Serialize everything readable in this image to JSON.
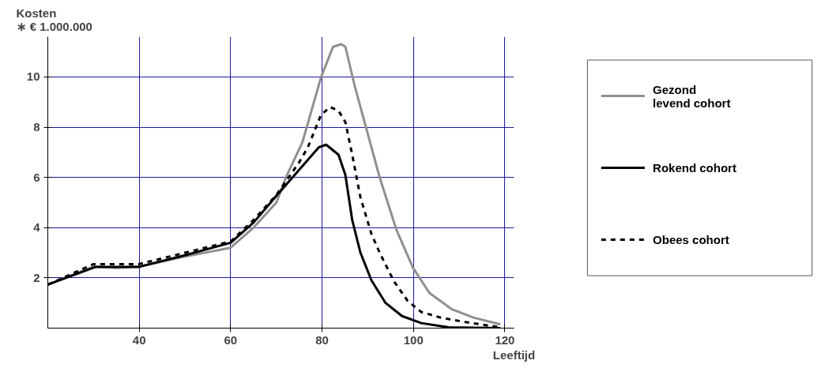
{
  "chart_data": {
    "type": "line",
    "ylabel": "Kosten\n∗ € 1.000.000",
    "xlabel": "Leeftijd",
    "xlim": [
      20,
      122
    ],
    "ylim": [
      0,
      11.6
    ],
    "xticks": [
      40,
      60,
      80,
      100,
      120
    ],
    "yticks": [
      2,
      4,
      6,
      8,
      10
    ],
    "grid": true,
    "legend": "right",
    "series": [
      {
        "name": "Gezond levend cohort",
        "color": "#909090",
        "line_style": "solid",
        "x": [
          20,
          30,
          35,
          40,
          50,
          60,
          62.5,
          65,
          70,
          72.1,
          75.7,
          79.8,
          82.4,
          84.2,
          85.1,
          87.2,
          89.6,
          92.6,
          96.3,
          99.9,
          103.5,
          108.3,
          113.1,
          119
        ],
        "values": [
          1.73,
          2.45,
          2.4,
          2.45,
          2.85,
          3.2,
          3.6,
          4.0,
          5.0,
          6.0,
          7.4,
          10.0,
          11.2,
          11.3,
          11.2,
          9.6,
          8.0,
          6.0,
          3.9,
          2.4,
          1.4,
          0.76,
          0.42,
          0.15
        ]
      },
      {
        "name": "Rokend cohort",
        "color": "#000000",
        "line_style": "solid",
        "x": [
          20,
          30.5,
          40,
          50,
          60,
          65,
          69.7,
          74.5,
          79.3,
          80.9,
          83.6,
          85.1,
          86.6,
          88.4,
          90.8,
          93.9,
          97.5,
          101.7,
          107.7,
          119
        ],
        "values": [
          1.73,
          2.44,
          2.44,
          2.9,
          3.4,
          4.2,
          5.2,
          6.2,
          7.2,
          7.3,
          6.9,
          6.1,
          4.3,
          3.0,
          1.9,
          1.0,
          0.48,
          0.2,
          0.03,
          0.0
        ]
      },
      {
        "name": "Obees cohort",
        "color": "#000000",
        "line_style": "dashed",
        "x": [
          20,
          30,
          40,
          50,
          60,
          65,
          70,
          75,
          76.9,
          79.8,
          81.8,
          83.6,
          85.1,
          86.6,
          88.4,
          90.8,
          92.6,
          95.7,
          98.7,
          101.7,
          105.9,
          110.7,
          119
        ],
        "values": [
          1.73,
          2.55,
          2.55,
          3.0,
          3.45,
          4.3,
          5.3,
          6.6,
          7.2,
          8.5,
          8.8,
          8.65,
          8.2,
          6.9,
          5.2,
          3.75,
          3.0,
          1.87,
          1.09,
          0.64,
          0.42,
          0.26,
          0.03
        ]
      }
    ]
  }
}
